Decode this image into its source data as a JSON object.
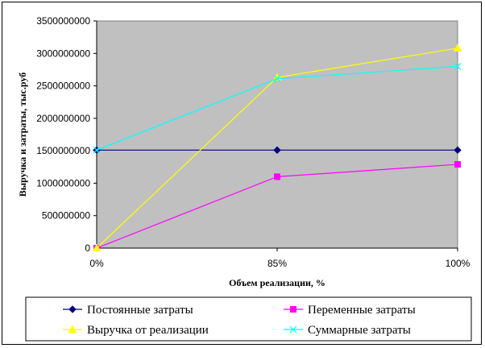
{
  "chart_data": {
    "type": "line",
    "categories": [
      "0%",
      "85%",
      "100%"
    ],
    "xlabel": "Объем реализации, %",
    "ylabel": "Выручка и затраты, тыс.руб",
    "ylim": [
      0,
      3500000000
    ],
    "yticks": [
      0,
      500000000,
      1000000000,
      1500000000,
      2000000000,
      2500000000,
      3000000000,
      3500000000
    ],
    "grid": false,
    "plot_background": "#c0c0c0",
    "legend_position": "bottom",
    "series": [
      {
        "name": "Постоянные затраты",
        "values": [
          1510000000,
          1510000000,
          1510000000
        ],
        "color": "#000080",
        "marker": "diamond"
      },
      {
        "name": "Переменные затраты",
        "values": [
          0,
          1100000000,
          1290000000
        ],
        "color": "#ff00ff",
        "marker": "square"
      },
      {
        "name": "Выручка от реализации",
        "values": [
          0,
          2630000000,
          3080000000
        ],
        "color": "#ffff00",
        "marker": "triangle"
      },
      {
        "name": "Суммарные затраты",
        "values": [
          1510000000,
          2610000000,
          2800000000
        ],
        "color": "#00ffff",
        "marker": "x"
      }
    ]
  }
}
